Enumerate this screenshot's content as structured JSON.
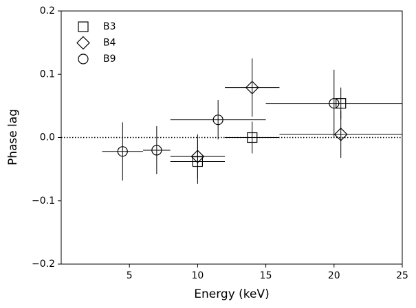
{
  "chart_data": {
    "type": "scatter",
    "xlabel": "Energy (keV)",
    "ylabel": "Phase lag",
    "xlim": [
      0,
      25
    ],
    "ylim": [
      -0.2,
      0.2
    ],
    "xticks": [
      5,
      10,
      15,
      20,
      25
    ],
    "yticks": [
      {
        "value": -0.2,
        "label": "−0.2"
      },
      {
        "value": -0.1,
        "label": "−0.1"
      },
      {
        "value": 0,
        "label": "0.0"
      },
      0.1,
      0.2
    ],
    "reference_line": 0,
    "legend": "upper left",
    "series": [
      {
        "name": "B3",
        "marker": "square",
        "color": "#000000",
        "x": [
          10,
          14,
          20.5
        ],
        "values": [
          -0.038,
          0,
          0.054
        ],
        "xerr": [
          2,
          2,
          5.5
        ],
        "yerr": [
          0.035,
          0.025,
          0.025
        ]
      },
      {
        "name": "B4",
        "marker": "diamond",
        "color": "#000000",
        "x": [
          10,
          14,
          20.5
        ],
        "values": [
          -0.03,
          0.079,
          0.005
        ],
        "xerr": [
          2,
          2,
          4.5
        ],
        "yerr": [
          0.035,
          0.046,
          0.037
        ]
      },
      {
        "name": "B9",
        "marker": "circle",
        "color": "#000000",
        "x": [
          4.5,
          7,
          11.5,
          20
        ],
        "values": [
          -0.022,
          -0.02,
          0.028,
          0.054
        ],
        "xerr": [
          1.5,
          1,
          3.5,
          5
        ],
        "yerr": [
          0.046,
          0.038,
          0.031,
          0.053
        ]
      }
    ]
  }
}
